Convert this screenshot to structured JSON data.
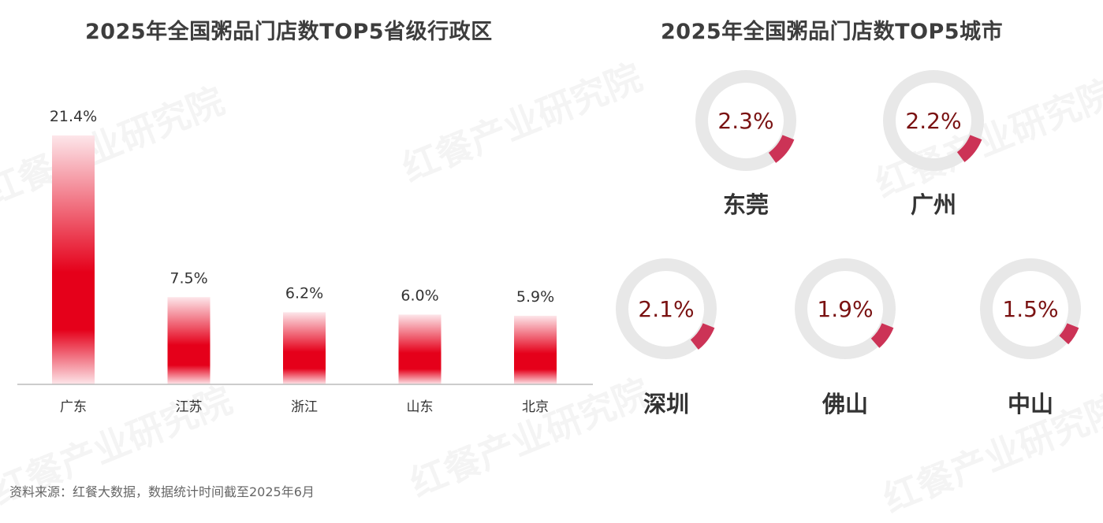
{
  "colors": {
    "bar_dark": "#e5001a",
    "bar_light": "#fde6ea",
    "ring": "#e8e8e8",
    "wedge": "#cc3356",
    "value_text": "#7a1212"
  },
  "watermark": "红餐产业研究院",
  "source": "资料来源：红餐大数据，数据统计时间截至2025年6月",
  "chart_data": [
    {
      "type": "bar",
      "title": "2025年全国粥品门店数TOP5省级行政区",
      "categories": [
        "广东",
        "江苏",
        "浙江",
        "山东",
        "北京"
      ],
      "values": [
        21.4,
        7.5,
        6.2,
        6.0,
        5.9
      ],
      "labels": [
        "21.4%",
        "7.5%",
        "6.2%",
        "6.0%",
        "5.9%"
      ],
      "unit": "%",
      "ylim": [
        0,
        21.4
      ],
      "grid": false
    },
    {
      "type": "pie",
      "title": "2025年全国粥品门店数TOP5城市",
      "categories": [
        "东莞",
        "广州",
        "深圳",
        "佛山",
        "中山"
      ],
      "values": [
        2.3,
        2.2,
        2.1,
        1.9,
        1.5
      ],
      "labels": [
        "2.3%",
        "2.2%",
        "2.1%",
        "1.9%",
        "1.5%"
      ],
      "unit": "%"
    }
  ]
}
